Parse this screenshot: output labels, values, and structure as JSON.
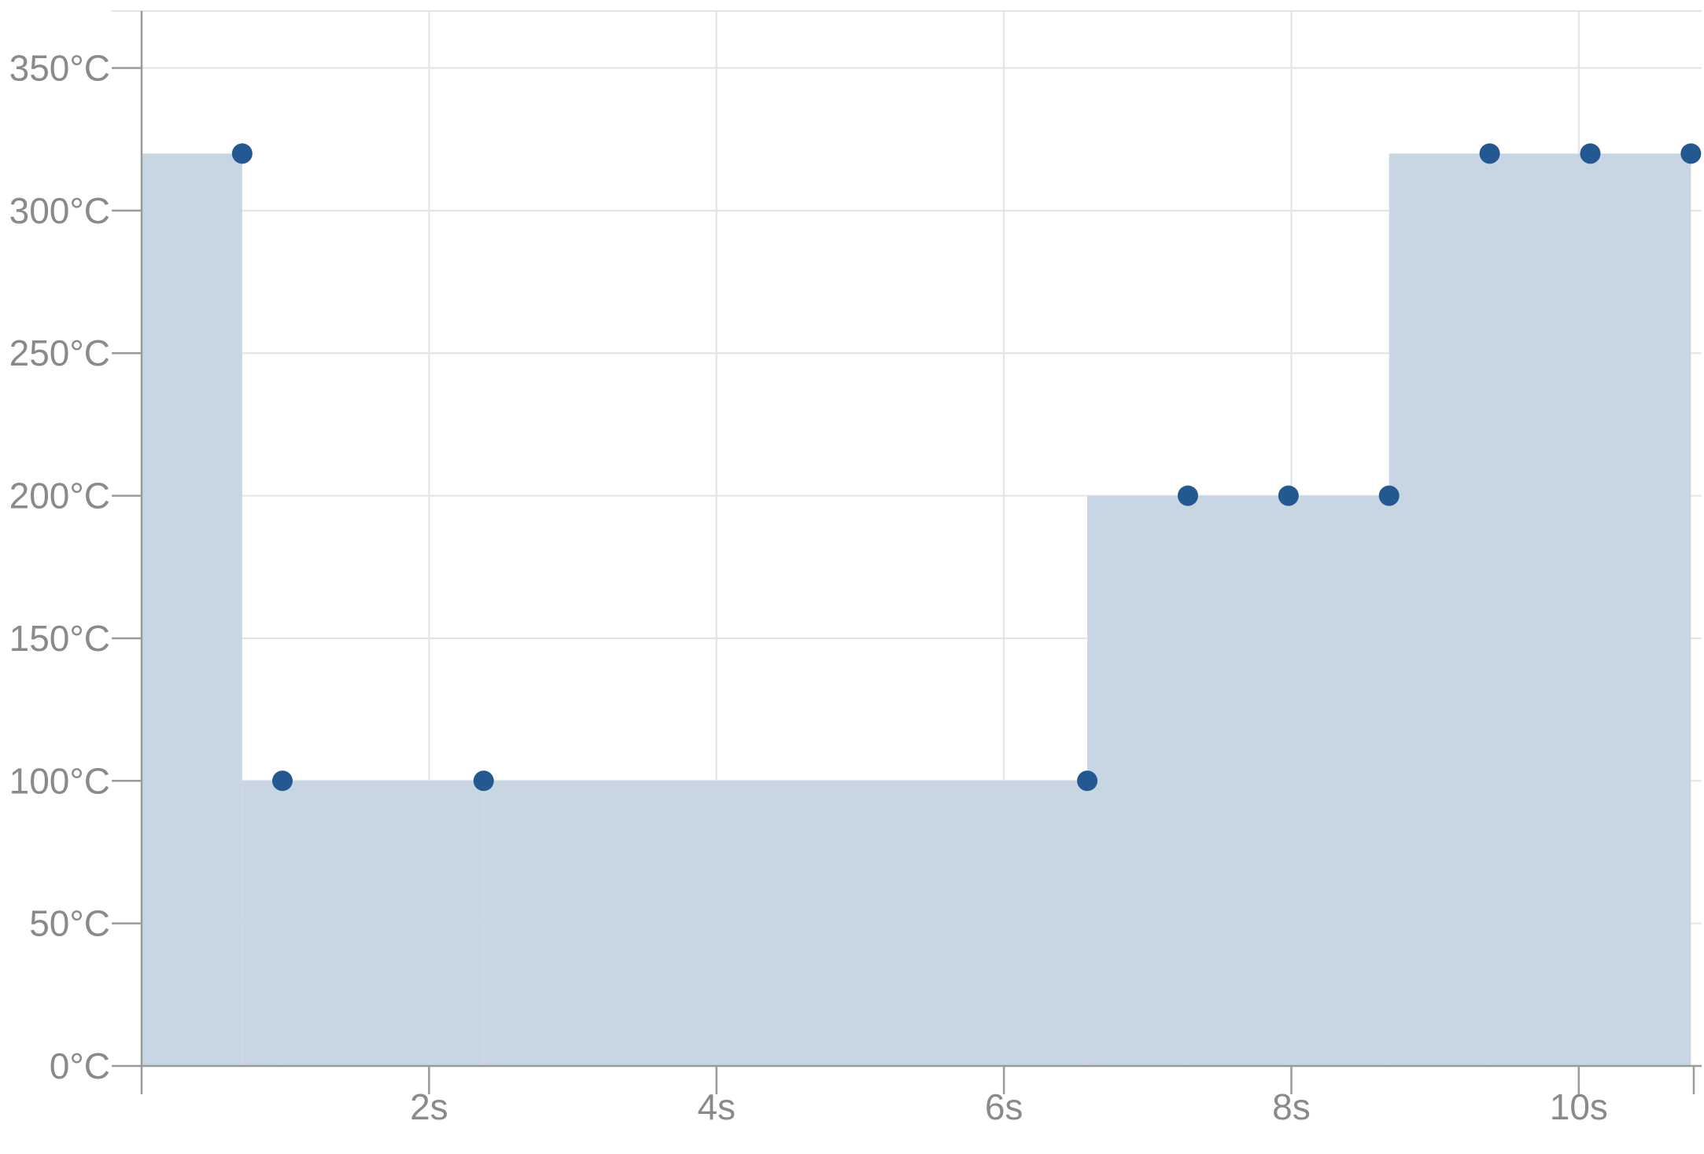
{
  "chart_data": {
    "type": "area",
    "step": "after",
    "x_unit": "s",
    "y_unit": "°C",
    "xlim": [
      0,
      10.8
    ],
    "ylim": [
      0,
      370
    ],
    "grid": true,
    "colors": {
      "area": "#c8d6e3",
      "points": "#245891",
      "grid": "#e3e3e3",
      "axis": "#9a9a9a",
      "label": "#8a8a8a"
    },
    "x_ticks": [
      {
        "value": 2,
        "label": "2s"
      },
      {
        "value": 4,
        "label": "4s"
      },
      {
        "value": 6,
        "label": "6s"
      },
      {
        "value": 8,
        "label": "8s"
      },
      {
        "value": 10,
        "label": "10s"
      }
    ],
    "y_ticks": [
      {
        "value": 0,
        "label": "0°C"
      },
      {
        "value": 50,
        "label": "50°C"
      },
      {
        "value": 100,
        "label": "100°C"
      },
      {
        "value": 150,
        "label": "150°C"
      },
      {
        "value": 200,
        "label": "200°C"
      },
      {
        "value": 250,
        "label": "250°C"
      },
      {
        "value": 300,
        "label": "300°C"
      },
      {
        "value": 350,
        "label": "350°C"
      }
    ],
    "series": [
      {
        "points": [
          {
            "x": 0.7,
            "y": 320
          },
          {
            "x": 0.98,
            "y": 100
          },
          {
            "x": 2.38,
            "y": 100
          },
          {
            "x": 6.58,
            "y": 100
          },
          {
            "x": 7.28,
            "y": 200
          },
          {
            "x": 7.98,
            "y": 200
          },
          {
            "x": 8.68,
            "y": 200
          },
          {
            "x": 9.38,
            "y": 320
          },
          {
            "x": 10.08,
            "y": 320
          },
          {
            "x": 10.78,
            "y": 320
          }
        ]
      }
    ]
  }
}
